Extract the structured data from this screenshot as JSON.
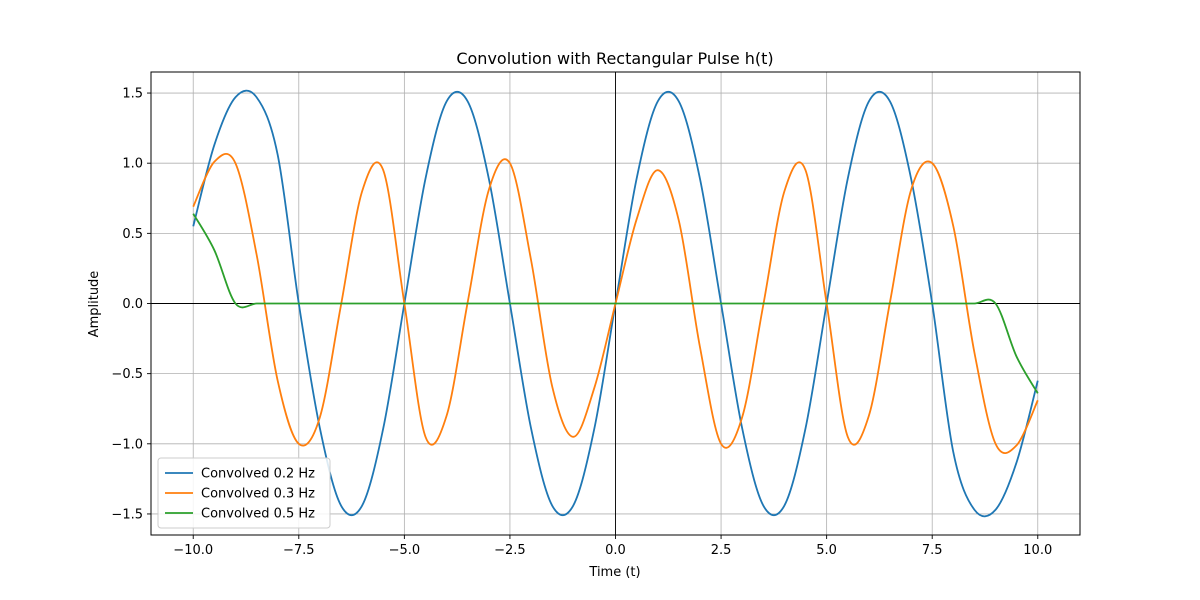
{
  "chart_data": {
    "type": "line",
    "title": "Convolution with Rectangular Pulse h(t)",
    "xlabel": "Time (t)",
    "ylabel": "Amplitude",
    "xlim": [
      -11.0,
      11.0
    ],
    "ylim": [
      -1.65,
      1.65
    ],
    "xticks": [
      -10.0,
      -7.5,
      -5.0,
      -2.5,
      0.0,
      2.5,
      5.0,
      7.5,
      10.0
    ],
    "xtick_labels": [
      "−10.0",
      "−7.5",
      "−5.0",
      "−2.5",
      "0.0",
      "2.5",
      "5.0",
      "7.5",
      "10.0"
    ],
    "yticks": [
      -1.5,
      -1.0,
      -0.5,
      0.0,
      0.5,
      1.0,
      1.5
    ],
    "ytick_labels": [
      "−1.5",
      "−1.0",
      "−0.5",
      "0.0",
      "0.5",
      "1.0",
      "1.5"
    ],
    "grid": true,
    "axhline": 0,
    "axvline": 0,
    "legend_position": "lower-left",
    "x": [
      -10.0,
      -9.5,
      -9.0,
      -8.5,
      -8.0,
      -7.5,
      -7.0,
      -6.5,
      -6.0,
      -5.5,
      -5.0,
      -4.5,
      -4.0,
      -3.5,
      -3.0,
      -2.5,
      -2.0,
      -1.5,
      -1.0,
      -0.5,
      0.0,
      0.5,
      1.0,
      1.5,
      2.0,
      2.5,
      3.0,
      3.5,
      4.0,
      4.5,
      5.0,
      5.5,
      6.0,
      6.5,
      7.0,
      7.5,
      8.0,
      8.5,
      9.0,
      9.5,
      10.0
    ],
    "series": [
      {
        "name": "Convolved 0.2 Hz",
        "color": "#1f77b4",
        "values": [
          0.55,
          1.13,
          1.47,
          1.47,
          1.06,
          0.0,
          -0.89,
          -1.44,
          -1.44,
          -0.89,
          0.0,
          0.89,
          1.44,
          1.44,
          0.89,
          0.0,
          -0.89,
          -1.44,
          -1.44,
          -0.89,
          0.0,
          0.89,
          1.44,
          1.44,
          0.89,
          0.0,
          -0.89,
          -1.44,
          -1.44,
          -0.89,
          0.0,
          0.89,
          1.44,
          1.44,
          0.89,
          0.0,
          -1.06,
          -1.47,
          -1.47,
          -1.13,
          -0.55
        ]
      },
      {
        "name": "Convolved 0.3 Hz",
        "color": "#ff7f0e",
        "values": [
          0.69,
          1.01,
          1.0,
          0.35,
          -0.55,
          -1.0,
          -0.81,
          -0.01,
          0.8,
          0.95,
          0.0,
          -0.95,
          -0.8,
          0.01,
          0.81,
          1.0,
          0.31,
          -0.59,
          -0.95,
          -0.6,
          0.0,
          0.6,
          0.95,
          0.59,
          -0.31,
          -1.0,
          -0.81,
          -0.01,
          0.8,
          0.95,
          0.0,
          -0.95,
          -0.8,
          0.01,
          0.81,
          1.0,
          0.55,
          -0.35,
          -1.0,
          -1.01,
          -0.69
        ]
      },
      {
        "name": "Convolved 0.5 Hz",
        "color": "#2ca02c",
        "values": [
          0.64,
          0.38,
          0.0,
          0.0,
          0.0,
          0.0,
          0.0,
          0.0,
          0.0,
          0.0,
          0.0,
          0.0,
          0.0,
          0.0,
          0.0,
          0.0,
          0.0,
          0.0,
          0.0,
          0.0,
          0.0,
          0.0,
          0.0,
          0.0,
          0.0,
          0.0,
          0.0,
          0.0,
          0.0,
          0.0,
          0.0,
          0.0,
          0.0,
          0.0,
          0.0,
          0.0,
          0.0,
          0.0,
          0.0,
          -0.38,
          -0.64
        ]
      }
    ]
  }
}
